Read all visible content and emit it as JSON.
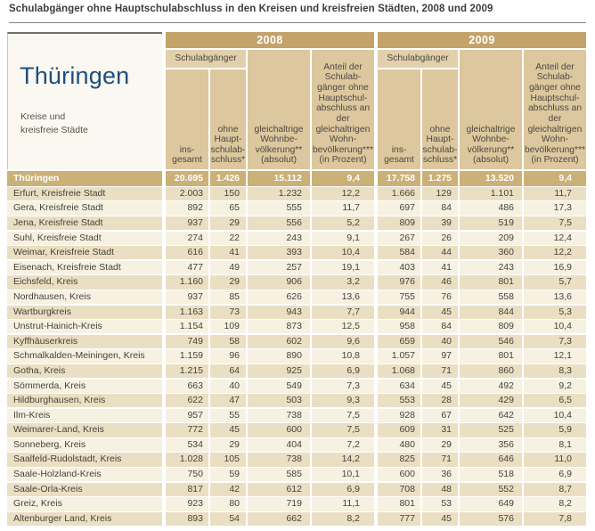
{
  "title": "Schulabgänger ohne Hauptschulabschluss in den Kreisen und kreisfreien Städten, 2008 und 2009",
  "region": {
    "name": "Thüringen",
    "subtitle": "Kreise und\nkreisfreie Städte"
  },
  "columns": {
    "group_2008": "2008",
    "group_2009": "2009",
    "schulabgaenger": "Schulabgänger",
    "insgesamt": "ins-\ngesamt",
    "ohne_hauptschulabschluss": "ohne\nHaupt-\nschulab-\nschluss*",
    "wohnbevoelkerung": "gleichaltrige\nWohnbe-\nvölkerung**\n(absolut)",
    "anteil": "Anteil der\nSchulab-\ngänger ohne\nHauptschul-\nabschluss an der\ngleichaltrigen\nWohn-\nbevölkerung***\n(in Prozent)"
  },
  "colors": {
    "year_band": "#c3a369",
    "header_cell": "#ddc79e",
    "total_row": "#cbb077",
    "row_beige": "#ebdfc3",
    "row_light": "#f7f1e2",
    "region_name_blue": "#1d4f7e"
  },
  "table": {
    "total_row": {
      "name": "Thüringen",
      "y2008": [
        "20.695",
        "1.426",
        "15.112",
        "9,4"
      ],
      "y2009": [
        "17.758",
        "1.275",
        "13.520",
        "9,4"
      ]
    },
    "rows": [
      {
        "name": "Erfurt, Kreisfreie Stadt",
        "y2008": [
          "2.003",
          "150",
          "1.232",
          "12,2"
        ],
        "y2009": [
          "1.666",
          "129",
          "1.101",
          "11,7"
        ]
      },
      {
        "name": "Gera, Kreisfreie Stadt",
        "y2008": [
          "892",
          "65",
          "555",
          "11,7"
        ],
        "y2009": [
          "697",
          "84",
          "486",
          "17,3"
        ]
      },
      {
        "name": "Jena, Kreisfreie Stadt",
        "y2008": [
          "937",
          "29",
          "556",
          "5,2"
        ],
        "y2009": [
          "809",
          "39",
          "519",
          "7,5"
        ]
      },
      {
        "name": "Suhl, Kreisfreie Stadt",
        "y2008": [
          "274",
          "22",
          "243",
          "9,1"
        ],
        "y2009": [
          "267",
          "26",
          "209",
          "12,4"
        ]
      },
      {
        "name": "Weimar, Kreisfreie Stadt",
        "y2008": [
          "616",
          "41",
          "393",
          "10,4"
        ],
        "y2009": [
          "584",
          "44",
          "360",
          "12,2"
        ]
      },
      {
        "name": "Eisenach, Kreisfreie Stadt",
        "y2008": [
          "477",
          "49",
          "257",
          "19,1"
        ],
        "y2009": [
          "403",
          "41",
          "243",
          "16,9"
        ]
      },
      {
        "name": "Eichsfeld, Kreis",
        "y2008": [
          "1.160",
          "29",
          "906",
          "3,2"
        ],
        "y2009": [
          "976",
          "46",
          "801",
          "5,7"
        ]
      },
      {
        "name": "Nordhausen, Kreis",
        "y2008": [
          "937",
          "85",
          "626",
          "13,6"
        ],
        "y2009": [
          "755",
          "76",
          "558",
          "13,6"
        ]
      },
      {
        "name": "Wartburgkreis",
        "y2008": [
          "1.163",
          "73",
          "943",
          "7,7"
        ],
        "y2009": [
          "944",
          "45",
          "844",
          "5,3"
        ]
      },
      {
        "name": "Unstrut-Hainich-Kreis",
        "y2008": [
          "1.154",
          "109",
          "873",
          "12,5"
        ],
        "y2009": [
          "958",
          "84",
          "809",
          "10,4"
        ]
      },
      {
        "name": "Kyffhäuserkreis",
        "y2008": [
          "749",
          "58",
          "602",
          "9,6"
        ],
        "y2009": [
          "659",
          "40",
          "546",
          "7,3"
        ]
      },
      {
        "name": "Schmalkalden-Meiningen, Kreis",
        "y2008": [
          "1.159",
          "96",
          "890",
          "10,8"
        ],
        "y2009": [
          "1.057",
          "97",
          "801",
          "12,1"
        ]
      },
      {
        "name": "Gotha, Kreis",
        "y2008": [
          "1.215",
          "64",
          "925",
          "6,9"
        ],
        "y2009": [
          "1.068",
          "71",
          "860",
          "8,3"
        ]
      },
      {
        "name": "Sömmerda, Kreis",
        "y2008": [
          "663",
          "40",
          "549",
          "7,3"
        ],
        "y2009": [
          "634",
          "45",
          "492",
          "9,2"
        ]
      },
      {
        "name": "Hildburghausen, Kreis",
        "y2008": [
          "622",
          "47",
          "503",
          "9,3"
        ],
        "y2009": [
          "553",
          "28",
          "429",
          "6,5"
        ]
      },
      {
        "name": "Ilm-Kreis",
        "y2008": [
          "957",
          "55",
          "738",
          "7,5"
        ],
        "y2009": [
          "928",
          "67",
          "642",
          "10,4"
        ]
      },
      {
        "name": "Weimarer-Land, Kreis",
        "y2008": [
          "772",
          "45",
          "600",
          "7,5"
        ],
        "y2009": [
          "609",
          "31",
          "525",
          "5,9"
        ]
      },
      {
        "name": "Sonneberg, Kreis",
        "y2008": [
          "534",
          "29",
          "404",
          "7,2"
        ],
        "y2009": [
          "480",
          "29",
          "356",
          "8,1"
        ]
      },
      {
        "name": "Saalfeld-Rudolstadt, Kreis",
        "y2008": [
          "1.028",
          "105",
          "738",
          "14,2"
        ],
        "y2009": [
          "825",
          "71",
          "646",
          "11,0"
        ]
      },
      {
        "name": "Saale-Holzland-Kreis",
        "y2008": [
          "750",
          "59",
          "585",
          "10,1"
        ],
        "y2009": [
          "600",
          "36",
          "518",
          "6,9"
        ]
      },
      {
        "name": "Saale-Orla-Kreis",
        "y2008": [
          "817",
          "42",
          "612",
          "6,9"
        ],
        "y2009": [
          "708",
          "48",
          "552",
          "8,7"
        ]
      },
      {
        "name": "Greiz, Kreis",
        "y2008": [
          "923",
          "80",
          "719",
          "11,1"
        ],
        "y2009": [
          "801",
          "53",
          "649",
          "8,2"
        ]
      },
      {
        "name": "Altenburger Land, Kreis",
        "y2008": [
          "893",
          "54",
          "662",
          "8,2"
        ],
        "y2009": [
          "777",
          "45",
          "576",
          "7,8"
        ]
      }
    ]
  }
}
